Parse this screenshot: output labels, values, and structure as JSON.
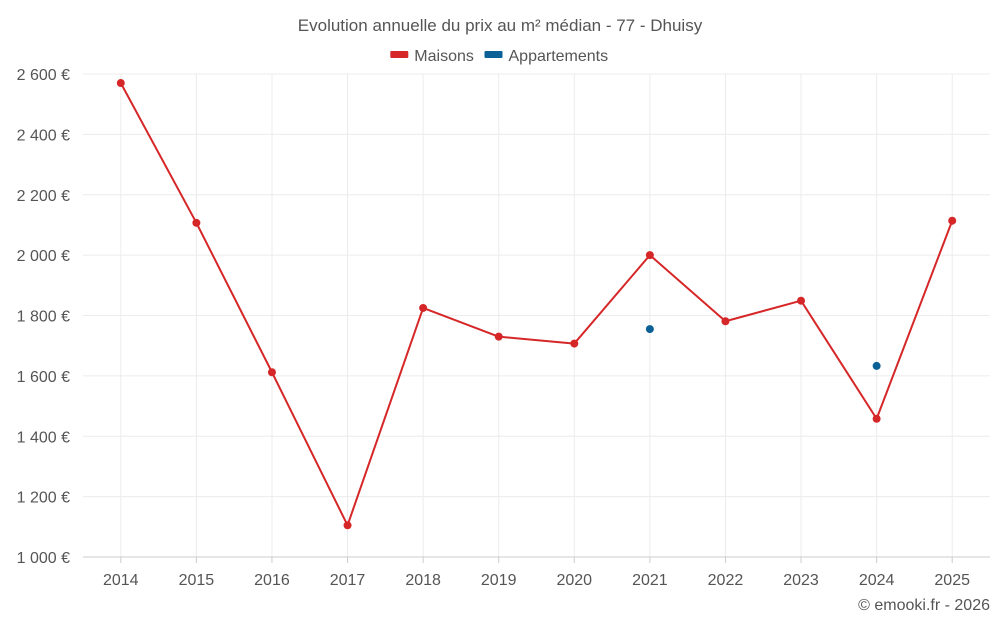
{
  "chart_data": {
    "type": "line",
    "title": "Evolution annuelle du prix au m² médian - 77 - Dhuisy",
    "categories": [
      "2014",
      "2015",
      "2016",
      "2017",
      "2018",
      "2019",
      "2020",
      "2021",
      "2022",
      "2023",
      "2024",
      "2025"
    ],
    "series": [
      {
        "name": "Maisons",
        "color": "#d62728",
        "values": [
          2570,
          2107,
          1612,
          1105,
          1825,
          1730,
          1707,
          2000,
          1781,
          1849,
          1458,
          2114
        ]
      },
      {
        "name": "Appartements",
        "color": "#0b6196",
        "values": [
          null,
          null,
          null,
          null,
          null,
          null,
          null,
          1755,
          null,
          null,
          1633,
          null
        ]
      }
    ],
    "ylim": [
      1000,
      2600
    ],
    "yticks": [
      1000,
      1200,
      1400,
      1600,
      1800,
      2000,
      2200,
      2400,
      2600
    ],
    "ytick_labels": [
      "1 000 €",
      "1 200 €",
      "1 400 €",
      "1 600 €",
      "1 800 €",
      "2 000 €",
      "2 200 €",
      "2 400 €",
      "2 600 €"
    ],
    "xlabel": "",
    "ylabel": "",
    "grid": true,
    "legend_position": "top-center"
  },
  "credit": "© emooki.fr - 2026"
}
